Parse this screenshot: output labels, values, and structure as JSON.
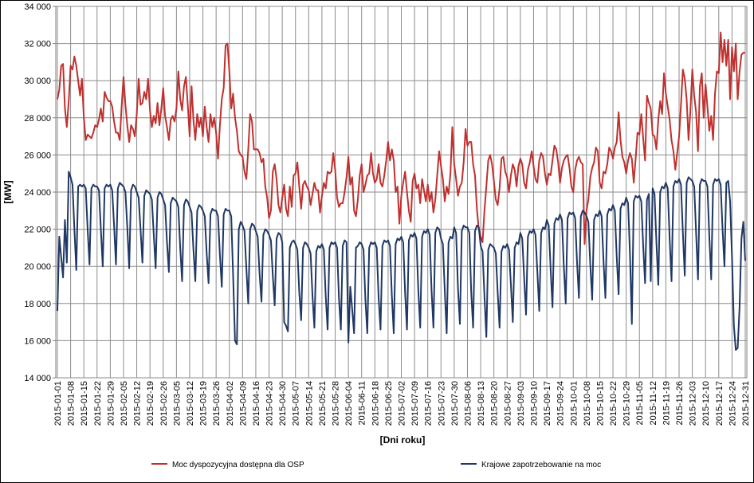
{
  "chart_data": {
    "type": "line",
    "x_label": "[Dni roku]",
    "y_label": "[MW]",
    "ylim": [
      14000,
      34000
    ],
    "yticks": [
      {
        "value": 14000,
        "label": "14 000"
      },
      {
        "value": 16000,
        "label": "16 000"
      },
      {
        "value": 18000,
        "label": "18 000"
      },
      {
        "value": 20000,
        "label": "20 000"
      },
      {
        "value": 22000,
        "label": "22 000"
      },
      {
        "value": 24000,
        "label": "24 000"
      },
      {
        "value": 26000,
        "label": "26 000"
      },
      {
        "value": 28000,
        "label": "28 000"
      },
      {
        "value": 30000,
        "label": "30 000"
      },
      {
        "value": 32000,
        "label": "32 000"
      },
      {
        "value": 34000,
        "label": "34 000"
      }
    ],
    "grid": true,
    "legend": "bottom",
    "categories": [
      "2015-01-01",
      null,
      null,
      null,
      null,
      null,
      null,
      "2015-01-08",
      null,
      null,
      null,
      null,
      null,
      null,
      "2015-01-15",
      null,
      null,
      null,
      null,
      null,
      null,
      "2015-01-22",
      null,
      null,
      null,
      null,
      null,
      null,
      "2015-01-29",
      null,
      null,
      null,
      null,
      null,
      null,
      "2015-02-05",
      null,
      null,
      null,
      null,
      null,
      null,
      "2015-02-12",
      null,
      null,
      null,
      null,
      null,
      null,
      "2015-02-19",
      null,
      null,
      null,
      null,
      null,
      null,
      "2015-02-26",
      null,
      null,
      null,
      null,
      null,
      null,
      "2015-03-05",
      null,
      null,
      null,
      null,
      null,
      null,
      "2015-03-12",
      null,
      null,
      null,
      null,
      null,
      null,
      "2015-03-19",
      null,
      null,
      null,
      null,
      null,
      null,
      "2015-03-26",
      null,
      null,
      null,
      null,
      null,
      null,
      "2015-04-02",
      null,
      null,
      null,
      null,
      null,
      null,
      "2015-04-09",
      null,
      null,
      null,
      null,
      null,
      null,
      "2015-04-16",
      null,
      null,
      null,
      null,
      null,
      null,
      "2015-04-23",
      null,
      null,
      null,
      null,
      null,
      null,
      "2015-04-30",
      null,
      null,
      null,
      null,
      null,
      null,
      "2015-05-07",
      null,
      null,
      null,
      null,
      null,
      null,
      "2015-05-14",
      null,
      null,
      null,
      null,
      null,
      null,
      "2015-05-21",
      null,
      null,
      null,
      null,
      null,
      null,
      "2015-05-28",
      null,
      null,
      null,
      null,
      null,
      null,
      "2015-06-04",
      null,
      null,
      null,
      null,
      null,
      null,
      "2015-06-11",
      null,
      null,
      null,
      null,
      null,
      null,
      "2015-06-18",
      null,
      null,
      null,
      null,
      null,
      null,
      "2015-06-25",
      null,
      null,
      null,
      null,
      null,
      null,
      "2015-07-02",
      null,
      null,
      null,
      null,
      null,
      null,
      "2015-07-09",
      null,
      null,
      null,
      null,
      null,
      null,
      "2015-07-16",
      null,
      null,
      null,
      null,
      null,
      null,
      "2015-07-23",
      null,
      null,
      null,
      null,
      null,
      null,
      "2015-07-30",
      null,
      null,
      null,
      null,
      null,
      null,
      "2015-08-06",
      null,
      null,
      null,
      null,
      null,
      null,
      "2015-08-13",
      null,
      null,
      null,
      null,
      null,
      null,
      "2015-08-20",
      null,
      null,
      null,
      null,
      null,
      null,
      "2015-08-27",
      null,
      null,
      null,
      null,
      null,
      null,
      "2015-09-03",
      null,
      null,
      null,
      null,
      null,
      null,
      "2015-09-10",
      null,
      null,
      null,
      null,
      null,
      null,
      "2015-09-17",
      null,
      null,
      null,
      null,
      null,
      null,
      "2015-09-24",
      null,
      null,
      null,
      null,
      null,
      null,
      "2015-10-01",
      null,
      null,
      null,
      null,
      null,
      null,
      "2015-10-08",
      null,
      null,
      null,
      null,
      null,
      null,
      "2015-10-15",
      null,
      null,
      null,
      null,
      null,
      null,
      "2015-10-22",
      null,
      null,
      null,
      null,
      null,
      null,
      "2015-10-29",
      null,
      null,
      null,
      null,
      null,
      null,
      "2015-11-05",
      null,
      null,
      null,
      null,
      null,
      null,
      "2015-11-12",
      null,
      null,
      null,
      null,
      null,
      null,
      "2015-11-19",
      null,
      null,
      null,
      null,
      null,
      null,
      "2015-11-26",
      null,
      null,
      null,
      null,
      null,
      null,
      "2015-12-03",
      null,
      null,
      null,
      null,
      null,
      null,
      "2015-12-10",
      null,
      null,
      null,
      null,
      null,
      null,
      "2015-12-17",
      null,
      null,
      null,
      null,
      null,
      null,
      "2015-12-24",
      null,
      null,
      null,
      null,
      null,
      null,
      "2015-12-31"
    ],
    "series": [
      {
        "name": "Moc dyspozycyjna dostępna dla OSP",
        "color": "#c0302e",
        "values": [
          29000,
          29500,
          30800,
          30900,
          28500,
          27500,
          28900,
          30800,
          30600,
          31300,
          30800,
          30000,
          29200,
          30100,
          28000,
          26800,
          27100,
          27000,
          26900,
          27200,
          27600,
          27500,
          27900,
          28500,
          27800,
          29400,
          29100,
          28900,
          28900,
          28600,
          27800,
          27200,
          27200,
          26800,
          28600,
          30200,
          28700,
          27600,
          26700,
          27600,
          27400,
          27000,
          28200,
          30100,
          28700,
          28800,
          29400,
          29000,
          30100,
          28400,
          27500,
          28100,
          27700,
          28800,
          27600,
          28500,
          29600,
          28100,
          27500,
          26800,
          27900,
          28100,
          27800,
          28500,
          30500,
          29000,
          28400,
          29700,
          30200,
          28700,
          27000,
          29700,
          27900,
          26800,
          28200,
          27500,
          28000,
          27000,
          28600,
          27500,
          26700,
          28200,
          27500,
          28000,
          27200,
          25800,
          27600,
          29000,
          29600,
          31900,
          32000,
          30500,
          28500,
          29300,
          28000,
          27300,
          26200,
          26000,
          25900,
          25100,
          24700,
          26300,
          28200,
          27800,
          26300,
          26300,
          26300,
          26100,
          25600,
          25800,
          24300,
          23700,
          22600,
          23000,
          25100,
          25500,
          24700,
          23300,
          22900,
          23700,
          24400,
          23100,
          22700,
          24300,
          23200,
          24900,
          25000,
          25600,
          24300,
          23100,
          24400,
          24600,
          24300,
          24100,
          23300,
          23900,
          24500,
          24100,
          24100,
          22900,
          23800,
          24500,
          24200,
          25100,
          25000,
          25100,
          26100,
          25200,
          23700,
          23200,
          23400,
          23400,
          24000,
          24800,
          25900,
          24400,
          24800,
          23000,
          22700,
          23600,
          24900,
          25500,
          24000,
          24400,
          24900,
          25000,
          26100,
          25000,
          24500,
          24700,
          25500,
          24500,
          24300,
          24900,
          25700,
          26700,
          25700,
          26300,
          25700,
          24000,
          24300,
          22300,
          23800,
          24500,
          25100,
          24000,
          23000,
          22400,
          24600,
          25000,
          24200,
          24400,
          23400,
          24700,
          24100,
          23500,
          24400,
          23500,
          24000,
          22900,
          23600,
          24900,
          26200,
          25400,
          24700,
          23500,
          24300,
          23900,
          25000,
          27500,
          25500,
          24700,
          23800,
          24300,
          24500,
          25600,
          27400,
          26500,
          26700,
          26700,
          25500,
          24900,
          23100,
          22000,
          21600,
          21300,
          23000,
          24300,
          25700,
          26000,
          25500,
          24600,
          23600,
          23300,
          24200,
          25800,
          25900,
          25100,
          24800,
          24000,
          24900,
          25500,
          25200,
          24300,
          25400,
          25800,
          25500,
          24500,
          24200,
          25200,
          25600,
          26200,
          25400,
          24700,
          24500,
          25700,
          26100,
          25900,
          25000,
          24400,
          25000,
          24900,
          25700,
          26500,
          26300,
          25600,
          24500,
          25300,
          25700,
          25900,
          26000,
          25300,
          24300,
          24000,
          25200,
          25700,
          25900,
          25600,
          25500,
          21200,
          23000,
          23600,
          24800,
          25300,
          25600,
          26400,
          26200,
          24500,
          24200,
          25100,
          25000,
          25500,
          26400,
          26200,
          25800,
          26400,
          26700,
          28300,
          26800,
          25900,
          25600,
          25000,
          25700,
          26100,
          25800,
          24500,
          25800,
          27200,
          27100,
          28200,
          26900,
          25700,
          29200,
          28800,
          28500,
          27100,
          27000,
          26300,
          27900,
          28900,
          28200,
          30400,
          29300,
          28600,
          27900,
          26800,
          26200,
          25200,
          26100,
          27000,
          28700,
          30600,
          30100,
          29000,
          26800,
          28400,
          30600,
          29200,
          28300,
          26200,
          29700,
          30400,
          28000,
          29800,
          28600,
          27300,
          28100,
          26800,
          29300,
          30500,
          30400,
          32600,
          31000,
          32200,
          30800,
          32200,
          29000,
          31800,
          30500,
          32000,
          29000,
          30500,
          31400,
          31500,
          31500
        ]
      },
      {
        "name": "Krajowe zapotrzebowanie na moc",
        "color": "#1f3864",
        "values": [
          17600,
          21600,
          20500,
          19400,
          22500,
          20200,
          25100,
          24800,
          24400,
          22000,
          19800,
          24300,
          24400,
          24300,
          24400,
          24200,
          22000,
          20100,
          24200,
          24400,
          24300,
          24300,
          24100,
          22000,
          20000,
          24200,
          24400,
          24300,
          24400,
          24100,
          22200,
          20100,
          24200,
          24500,
          24400,
          24300,
          24000,
          22100,
          19900,
          24100,
          24400,
          24300,
          24000,
          23700,
          22000,
          20200,
          23800,
          24100,
          24000,
          23900,
          23600,
          21700,
          19900,
          23700,
          24000,
          23900,
          23600,
          23300,
          21300,
          19700,
          23400,
          23700,
          23600,
          23500,
          23200,
          21000,
          19200,
          23300,
          23600,
          23500,
          23200,
          22900,
          20900,
          19200,
          23000,
          23300,
          23200,
          23000,
          22700,
          20700,
          19100,
          22800,
          23100,
          23000,
          23000,
          22700,
          20600,
          18900,
          22800,
          23100,
          23000,
          23000,
          22700,
          19500,
          16000,
          15800,
          22000,
          22400,
          22200,
          21900,
          19900,
          18000,
          22000,
          22300,
          22200,
          21900,
          21600,
          19600,
          18100,
          21700,
          22000,
          21900,
          21700,
          21400,
          19500,
          17900,
          21500,
          21800,
          21700,
          21300,
          17000,
          16800,
          16500,
          21000,
          21300,
          21400,
          21200,
          20900,
          18600,
          17100,
          21000,
          21300,
          21200,
          21000,
          20700,
          18400,
          16700,
          20800,
          21100,
          21000,
          21200,
          20900,
          18400,
          16600,
          21000,
          21300,
          21200,
          21300,
          21000,
          18300,
          16600,
          21100,
          21400,
          21300,
          15900,
          18900,
          17700,
          16400,
          21000,
          21100,
          21300,
          21200,
          20900,
          18200,
          16400,
          21000,
          21300,
          21200,
          21300,
          21000,
          18300,
          16600,
          21100,
          21400,
          21300,
          21400,
          21100,
          18400,
          16400,
          21200,
          21500,
          21400,
          21600,
          21300,
          18600,
          16600,
          21400,
          21700,
          21600,
          21800,
          21500,
          18700,
          16700,
          21600,
          21900,
          21800,
          22000,
          21700,
          18700,
          16700,
          21800,
          22100,
          22000,
          21500,
          21200,
          18700,
          16400,
          21300,
          21600,
          21500,
          22100,
          21800,
          18800,
          16900,
          21900,
          22200,
          22100,
          22100,
          21800,
          18600,
          16700,
          21900,
          22200,
          22100,
          21100,
          20800,
          18400,
          16200,
          20900,
          21200,
          21100,
          21000,
          20700,
          18600,
          16700,
          20800,
          21100,
          21000,
          21200,
          20900,
          19000,
          17000,
          21000,
          21300,
          21200,
          21800,
          21500,
          19400,
          17400,
          21600,
          21900,
          21800,
          22000,
          21700,
          19700,
          17600,
          21800,
          22100,
          22000,
          22500,
          22200,
          19900,
          17800,
          22300,
          22600,
          22500,
          22800,
          22500,
          20000,
          18000,
          22600,
          22900,
          22800,
          22900,
          22600,
          20200,
          18300,
          22700,
          23000,
          22900,
          22700,
          22400,
          20100,
          18200,
          22500,
          22800,
          22700,
          23000,
          22700,
          20300,
          18300,
          22800,
          23100,
          23000,
          23300,
          23000,
          20500,
          18500,
          23100,
          23400,
          23300,
          23700,
          23400,
          20700,
          16900,
          23500,
          23800,
          23700,
          23800,
          23500,
          21100,
          19100,
          23600,
          23900,
          19200,
          24200,
          23900,
          21300,
          19000,
          24000,
          24300,
          24200,
          24500,
          24200,
          21500,
          19200,
          24300,
          24600,
          24500,
          24700,
          24400,
          21800,
          19500,
          24500,
          24800,
          24700,
          24600,
          24300,
          21800,
          19300,
          24400,
          24700,
          24600,
          24600,
          24300,
          21600,
          19300,
          24400,
          24700,
          24600,
          24700,
          24400,
          22000,
          20000,
          24500,
          24600,
          23500,
          20500,
          16800,
          15500,
          15600,
          17800,
          21500,
          22400,
          20300
        ]
      }
    ]
  }
}
